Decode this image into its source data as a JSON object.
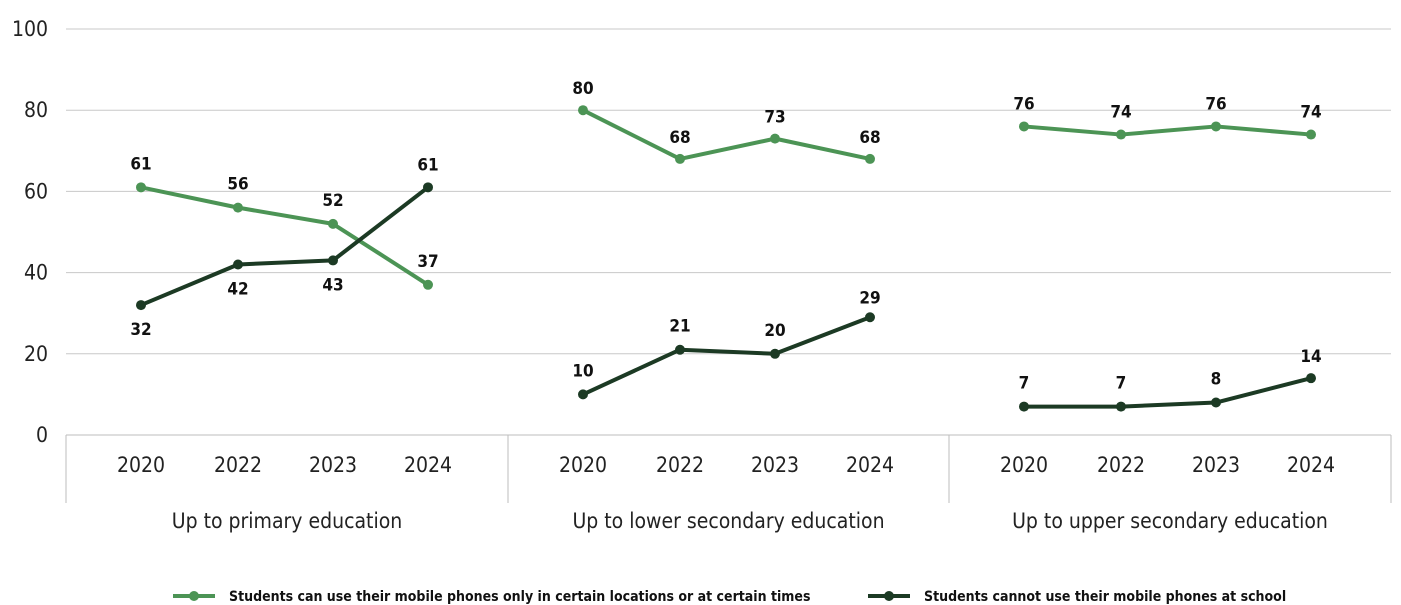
{
  "chart_data": {
    "type": "line",
    "ylim": [
      0,
      100
    ],
    "yticks": [
      0,
      20,
      40,
      60,
      80,
      100
    ],
    "grid": true,
    "legend_position": "bottom",
    "groups": [
      {
        "label": "Up to primary education",
        "categories": [
          "2020",
          "2022",
          "2023",
          "2024"
        ],
        "series": [
          {
            "name": "Students can use their mobile phones only in certain locations or at certain times",
            "values": [
              61,
              56,
              52,
              37
            ],
            "labels": [
              "61",
              "56",
              "52",
              "37"
            ]
          },
          {
            "name": "Students cannot use their mobile phones at school",
            "values": [
              32,
              42,
              43,
              61
            ],
            "labels": [
              "32",
              "42",
              "43",
              "61"
            ]
          }
        ]
      },
      {
        "label": "Up to lower secondary education",
        "categories": [
          "2020",
          "2022",
          "2023",
          "2024"
        ],
        "series": [
          {
            "name": "Students can use their mobile phones only in certain locations or at certain times",
            "values": [
              80,
              68,
              73,
              68
            ],
            "labels": [
              "80",
              "68",
              "73",
              "68"
            ]
          },
          {
            "name": "Students cannot use their mobile phones at school",
            "values": [
              10,
              21,
              20,
              29
            ],
            "labels": [
              "10",
              "21",
              "20",
              "29"
            ]
          }
        ]
      },
      {
        "label": "Up to upper secondary education",
        "categories": [
          "2020",
          "2022",
          "2023",
          "2024"
        ],
        "series": [
          {
            "name": "Students can use their mobile phones only in certain locations or at certain times",
            "values": [
              76,
              74,
              76,
              74
            ],
            "labels": [
              "76",
              "74",
              "76",
              "74"
            ]
          },
          {
            "name": "Students cannot use their mobile phones at school",
            "values": [
              7,
              7,
              8,
              14
            ],
            "labels": [
              "7",
              "7",
              "8",
              "14"
            ]
          }
        ]
      }
    ],
    "legend": [
      {
        "name": "Students can use their mobile phones only in certain locations or at certain times",
        "color": "#4c9455"
      },
      {
        "name": "Students cannot use their mobile phones at school",
        "color": "#1c3a24"
      }
    ]
  }
}
